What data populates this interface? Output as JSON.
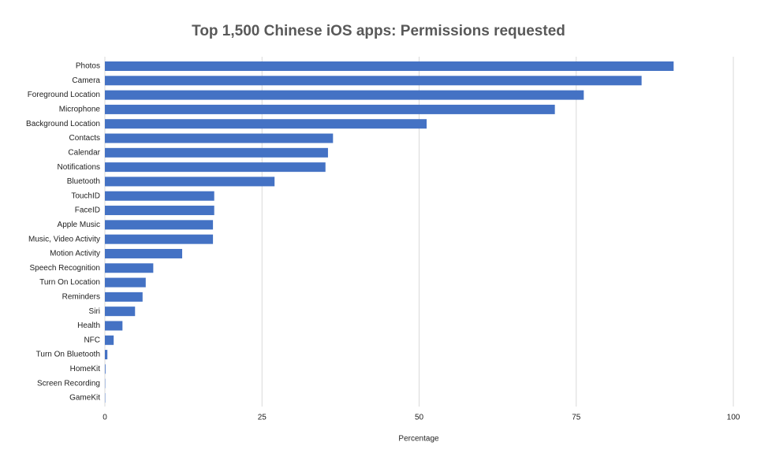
{
  "chart_data": {
    "type": "hbar",
    "title": "Top 1,500 Chinese iOS apps: Permissions requested",
    "x_label": "Percentage",
    "categories": [
      "Photos",
      "Camera",
      "Foreground Location",
      "Microphone",
      "Background Location",
      "Contacts",
      "Calendar",
      "Notifications",
      "Bluetooth",
      "TouchID",
      "FaceID",
      "Apple Music",
      "Music, Video Activity",
      "Motion Activity",
      "Speech Recognition",
      "Turn On Location",
      "Reminders",
      "Siri",
      "Health",
      "NFC",
      "Turn On Bluetooth",
      "HomeKit",
      "Screen Recording",
      "GameKit"
    ],
    "values": [
      90.5,
      85.4,
      76.2,
      71.6,
      51.2,
      36.3,
      35.5,
      35.1,
      27,
      17.4,
      17.4,
      17.2,
      17.2,
      12.3,
      7.7,
      6.5,
      6.0,
      4.8,
      2.8,
      1.4,
      0.4,
      0.1,
      0.05,
      0.05
    ],
    "color": "#4472c4",
    "xlim": [
      0,
      100
    ],
    "xticks": [
      0,
      25,
      50,
      75,
      100
    ],
    "grid": true
  }
}
